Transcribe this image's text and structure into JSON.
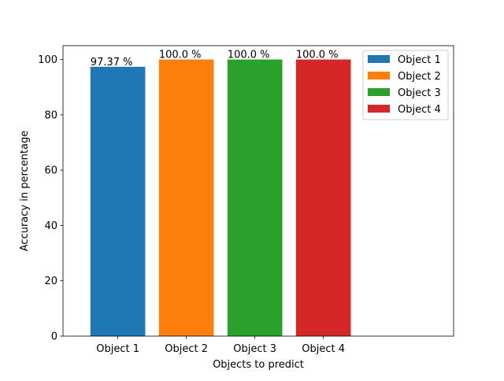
{
  "chart_data": {
    "type": "bar",
    "title": "",
    "xlabel": "Objects to predict",
    "ylabel": "Accuracy in percentage",
    "categories": [
      "Object 1",
      "Object 2",
      "Object 3",
      "Object 4"
    ],
    "values": [
      97.37,
      100.0,
      100.0,
      100.0
    ],
    "data_labels": [
      "97.37 %",
      "100.0 %",
      "100.0 %",
      "100.0 %"
    ],
    "colors": [
      "#1f77b4",
      "#ff7f0e",
      "#2ca02c",
      "#d62728"
    ],
    "legend": {
      "placement": "top-right",
      "entries": [
        "Object 1",
        "Object 2",
        "Object 3",
        "Object 4"
      ]
    },
    "ylim": [
      0,
      105
    ],
    "yticks": [
      0,
      20,
      40,
      60,
      80,
      100
    ],
    "grid": false
  }
}
